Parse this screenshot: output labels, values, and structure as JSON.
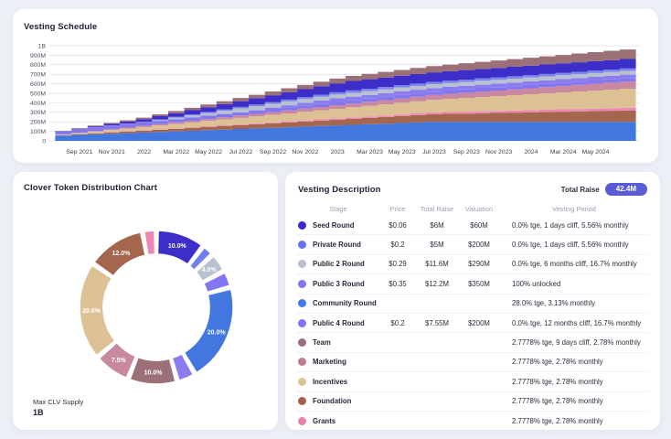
{
  "vesting_schedule_card": {
    "title": "Vesting Schedule"
  },
  "distribution_card": {
    "title": "Clover Token Distribution Chart",
    "supply_label": "Max CLV Supply",
    "supply_value": "1B"
  },
  "vesting_table": {
    "title": "Vesting Description",
    "total_raise_label": "Total Raise",
    "total_raise_value": "42.4M",
    "badge_color": "#5a5cd6",
    "columns": [
      "Stage",
      "Price",
      "Total Raise",
      "Valuation",
      "Vesting Period"
    ],
    "rows": [
      {
        "stage": "Seed Round",
        "color": "#3628c9",
        "price": "$0.06",
        "raise": "$6M",
        "valuation": "$60M",
        "vesting": "0.0% tge, 1 days cliff, 5.56% monthly"
      },
      {
        "stage": "Private Round",
        "color": "#6972ee",
        "price": "$0.2",
        "raise": "$5M",
        "valuation": "$200M",
        "vesting": "0.0% tge, 1 days cliff, 5.56% monthly"
      },
      {
        "stage": "Public 2 Round",
        "color": "#b8c0cc",
        "price": "$0.29",
        "raise": "$11.6M",
        "valuation": "$290M",
        "vesting": "0.0% tge, 6 months cliff, 16.7% monthly"
      },
      {
        "stage": "Public 3 Round",
        "color": "#8277f0",
        "price": "$0.35",
        "raise": "$12.2M",
        "valuation": "$350M",
        "vesting": "100% unlocked"
      },
      {
        "stage": "Community Round",
        "color": "#3f7ae8",
        "price": "",
        "raise": "",
        "valuation": "",
        "vesting": "28.0% tge, 3.13% monthly"
      },
      {
        "stage": "Public 4 Round",
        "color": "#7d75f5",
        "price": "$0.2",
        "raise": "$7.55M",
        "valuation": "$200M",
        "vesting": "0.0% tge, 12 months cliff, 16.7% monthly"
      },
      {
        "stage": "Team",
        "color": "#9a6f79",
        "price": "",
        "raise": "",
        "valuation": "",
        "vesting": "2.7778% tge, 9 days cliff, 2.78% monthly"
      },
      {
        "stage": "Marketing",
        "color": "#c07b94",
        "price": "",
        "raise": "",
        "valuation": "",
        "vesting": "2.7778% tge, 2.78% monthly"
      },
      {
        "stage": "Incentives",
        "color": "#ddc394",
        "price": "",
        "raise": "",
        "valuation": "",
        "vesting": "2.7778% tge, 2.78% monthly"
      },
      {
        "stage": "Foundation",
        "color": "#a5624a",
        "price": "",
        "raise": "",
        "valuation": "",
        "vesting": "2.7778% tge, 2.78% monthly"
      },
      {
        "stage": "Grants",
        "color": "#ec7fa8",
        "price": "",
        "raise": "",
        "valuation": "",
        "vesting": "2.7778% tge, 2.78% monthly"
      }
    ]
  },
  "chart_data": [
    {
      "type": "area",
      "title": "Vesting Schedule",
      "stacked": true,
      "step": true,
      "x_start": "Aug 2021",
      "x_end": "Jul 2024",
      "x_interval": "monthly",
      "x_tick_labels": [
        "Sep 2021",
        "Nov 2021",
        "2022",
        "Mar 2022",
        "May 2022",
        "Jul 2022",
        "Sep 2022",
        "Nov 2022",
        "2023",
        "Mar 2023",
        "May 2023",
        "Jul 2023",
        "Sep 2023",
        "Nov 2023",
        "2024",
        "Mar 2024",
        "May 2024"
      ],
      "x_tick_months": [
        1,
        3,
        5,
        7,
        9,
        11,
        13,
        15,
        17,
        19,
        21,
        23,
        25,
        27,
        29,
        31,
        33
      ],
      "y_ticks": [
        "0",
        "100M",
        "200M",
        "300M",
        "400M",
        "500M",
        "600M",
        "700M",
        "800M",
        "900M",
        "1B"
      ],
      "ylim_millions": [
        0,
        1000
      ],
      "unit": "million tokens (cumulative vested)",
      "series": [
        {
          "name": "Community Round",
          "color": "#4277e0",
          "values": [
            56,
            62.3,
            68.5,
            74.8,
            81,
            87.3,
            93.6,
            99.8,
            106.1,
            112.3,
            118.6,
            124.9,
            131.1,
            137.4,
            143.6,
            149.9,
            156.2,
            162.4,
            168.7,
            174.9,
            181.2,
            187.5,
            193.7,
            200,
            200,
            200,
            200,
            200,
            200,
            200,
            200,
            200,
            200,
            200,
            200,
            200
          ]
        },
        {
          "name": "Foundation",
          "color": "#a5664e",
          "values": [
            3.3,
            6.7,
            10,
            13.3,
            16.7,
            20,
            23.3,
            26.7,
            30,
            33.4,
            36.7,
            40,
            43.4,
            46.7,
            50,
            53.4,
            56.7,
            60,
            63.4,
            66.7,
            70,
            73.4,
            76.7,
            80,
            83.4,
            86.7,
            90,
            93.4,
            96.7,
            100.1,
            103.4,
            106.7,
            110.1,
            113.4,
            116.7,
            120
          ]
        },
        {
          "name": "Grants",
          "color": "#ee87b4",
          "values": [
            0.8,
            1.6,
            2.3,
            3.1,
            3.9,
            4.7,
            5.5,
            6.2,
            7,
            7.8,
            8.6,
            9.4,
            10.1,
            10.9,
            11.7,
            12.5,
            13.3,
            14,
            14.8,
            15.6,
            16.4,
            17.2,
            17.9,
            18.7,
            19.5,
            20.3,
            21.1,
            21.8,
            22.6,
            23.4,
            24.2,
            25,
            25.7,
            26.5,
            27.3,
            28
          ]
        },
        {
          "name": "Incentives",
          "color": "#dcc195",
          "values": [
            5.6,
            11.1,
            16.7,
            22.2,
            27.8,
            33.4,
            38.9,
            44.5,
            50,
            55.6,
            61.2,
            66.7,
            72.3,
            77.8,
            83.4,
            89,
            94.5,
            100.1,
            105.6,
            111.2,
            116.8,
            122.3,
            127.9,
            133.4,
            139,
            144.6,
            150.1,
            155.7,
            161.2,
            166.8,
            172.4,
            177.9,
            183.5,
            189,
            194.6,
            200
          ]
        },
        {
          "name": "Marketing",
          "color": "#c9889f",
          "values": [
            2.1,
            4.2,
            6.3,
            8.3,
            10.4,
            12.5,
            14.6,
            16.7,
            18.8,
            20.8,
            22.9,
            25,
            27.1,
            29.2,
            31.3,
            33.4,
            35.4,
            37.5,
            39.6,
            41.7,
            43.8,
            45.9,
            47.9,
            50,
            52.1,
            54.2,
            56.3,
            58.4,
            60.4,
            62.5,
            64.6,
            66.7,
            68.8,
            70.9,
            72.9,
            75
          ]
        },
        {
          "name": "Public 3 Round",
          "color": "#8277f0",
          "values": [
            35,
            35,
            35,
            35,
            35,
            35,
            35,
            35,
            35,
            35,
            35,
            35,
            35,
            35,
            35,
            35,
            35,
            35,
            35,
            35,
            35,
            35,
            35,
            35,
            35,
            35,
            35,
            35,
            35,
            35,
            35,
            35,
            35,
            35,
            35,
            35
          ]
        },
        {
          "name": "Public 4 Round",
          "color": "#8b7cf0",
          "values": [
            0,
            0,
            0,
            0,
            0,
            0,
            0,
            0,
            0,
            0,
            0,
            0,
            6.3,
            12.7,
            19,
            25.4,
            31.7,
            38,
            38,
            38,
            38,
            38,
            38,
            38,
            38,
            38,
            38,
            38,
            38,
            38,
            38,
            38,
            38,
            38,
            38,
            38
          ]
        },
        {
          "name": "Public 2 Round",
          "color": "#b9c1ce",
          "values": [
            0,
            0,
            0,
            0,
            0,
            0,
            6.7,
            13.4,
            20,
            26.7,
            33.4,
            40,
            40,
            40,
            40,
            40,
            40,
            40,
            40,
            40,
            40,
            40,
            40,
            40,
            40,
            40,
            40,
            40,
            40,
            40,
            40,
            40,
            40,
            40,
            40,
            40
          ]
        },
        {
          "name": "Private Round",
          "color": "#7d86ef",
          "values": [
            0,
            1.4,
            2.8,
            4.2,
            5.6,
            7,
            8.3,
            9.7,
            11.1,
            12.5,
            13.9,
            15.3,
            16.7,
            18.1,
            19.5,
            20.9,
            22.2,
            23.6,
            25,
            25,
            25,
            25,
            25,
            25,
            25,
            25,
            25,
            25,
            25,
            25,
            25,
            25,
            25,
            25,
            25,
            25
          ]
        },
        {
          "name": "Seed Round",
          "color": "#3d2ec9",
          "values": [
            0,
            5.6,
            11.1,
            16.7,
            22.2,
            27.8,
            33.4,
            38.9,
            44.5,
            50,
            55.6,
            61.2,
            66.7,
            72.3,
            77.8,
            83.4,
            89,
            94.5,
            100,
            100,
            100,
            100,
            100,
            100,
            100,
            100,
            100,
            100,
            100,
            100,
            100,
            100,
            100,
            100,
            100,
            100
          ]
        },
        {
          "name": "Team",
          "color": "#9b7076",
          "values": [
            2.8,
            5.6,
            8.3,
            11.1,
            13.9,
            16.7,
            19.5,
            22.2,
            25,
            27.8,
            30.6,
            33.4,
            36.1,
            38.9,
            41.7,
            44.5,
            47.3,
            50,
            52.8,
            55.6,
            58.4,
            61.2,
            63.9,
            66.7,
            69.5,
            72.3,
            75.1,
            77.8,
            80.6,
            83.4,
            86.2,
            89,
            91.7,
            94.5,
            97.3,
            100
          ]
        }
      ]
    },
    {
      "type": "pie",
      "title": "Clover Token Distribution Chart",
      "donut": true,
      "slices": [
        {
          "name": "Seed Round",
          "pct": 10.0,
          "label": "10.0%",
          "color": "#3d2ec9"
        },
        {
          "name": "Private Round",
          "pct": 2.5,
          "label": "",
          "color": "#6f7fee"
        },
        {
          "name": "Public 2 Round",
          "pct": 4.0,
          "label": "4.0%",
          "color": "#b9c1ce"
        },
        {
          "name": "Public 3 Round",
          "pct": 3.5,
          "label": "",
          "color": "#8277f0"
        },
        {
          "name": "Community Round",
          "pct": 20.0,
          "label": "20.0%",
          "color": "#4277e0"
        },
        {
          "name": "Public 4 Round",
          "pct": 3.8,
          "label": "",
          "color": "#8b7cf0"
        },
        {
          "name": "Team",
          "pct": 10.0,
          "label": "10.0%",
          "color": "#9b7076"
        },
        {
          "name": "Marketing",
          "pct": 7.5,
          "label": "7.5%",
          "color": "#c9889f"
        },
        {
          "name": "Incentives",
          "pct": 20.0,
          "label": "20.0%",
          "color": "#dcc195"
        },
        {
          "name": "Foundation",
          "pct": 12.0,
          "label": "12.0%",
          "color": "#a5664e"
        },
        {
          "name": "Grants",
          "pct": 2.8,
          "label": "",
          "color": "#ee87b4"
        }
      ]
    }
  ]
}
